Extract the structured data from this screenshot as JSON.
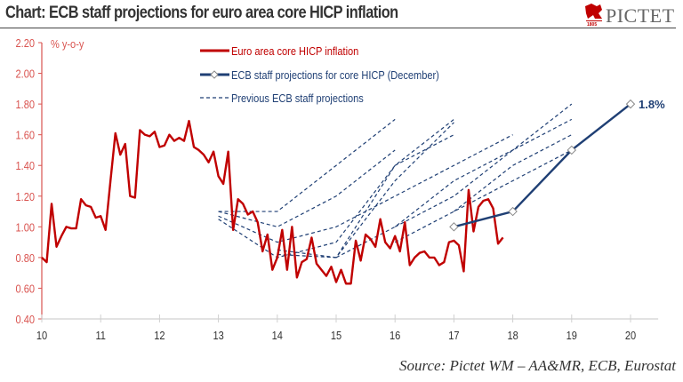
{
  "title": "Chart: ECB staff projections for euro area core HICP inflation",
  "logo": {
    "name": "PICTET",
    "year": "1805"
  },
  "source": "Source: Pictet WM – AA&MR, ECB, Eurostat",
  "colors": {
    "actual": "#c00000",
    "projection": "#1f3f74",
    "axis_y": "#d9534f"
  },
  "chart_data": {
    "type": "line",
    "title": "",
    "ylabel": "% y-o-y",
    "xlabel": "",
    "xlim": [
      10,
      20.47
    ],
    "ylim": [
      0.4,
      2.2
    ],
    "yticks": [
      "0.40",
      "0.60",
      "0.80",
      "1.00",
      "1.20",
      "1.40",
      "1.60",
      "1.80",
      "2.00",
      "2.20"
    ],
    "xticks": [
      "10",
      "11",
      "12",
      "13",
      "14",
      "15",
      "16",
      "17",
      "18",
      "19",
      "20"
    ],
    "grid": false,
    "legend_placement": "top-center",
    "annotation": "1.8%",
    "series": [
      {
        "name": "Euro area core HICP inflation",
        "start": 10,
        "frequency": "monthly",
        "values": [
          0.8,
          0.77,
          1.15,
          0.87,
          0.94,
          1.0,
          0.99,
          0.99,
          1.18,
          1.14,
          1.13,
          1.06,
          1.07,
          0.98,
          1.3,
          1.61,
          1.47,
          1.54,
          1.2,
          1.19,
          1.63,
          1.6,
          1.59,
          1.62,
          1.52,
          1.53,
          1.6,
          1.56,
          1.58,
          1.56,
          1.69,
          1.52,
          1.5,
          1.47,
          1.42,
          1.49,
          1.33,
          1.28,
          1.49,
          0.98,
          1.18,
          1.15,
          1.08,
          1.1,
          1.03,
          0.84,
          0.95,
          0.72,
          0.8,
          0.98,
          0.72,
          1.0,
          0.67,
          0.77,
          0.79,
          0.93,
          0.76,
          0.72,
          0.68,
          0.74,
          0.64,
          0.72,
          0.63,
          0.63,
          0.91,
          0.78,
          0.95,
          0.92,
          0.87,
          1.05,
          0.9,
          0.86,
          0.94,
          0.84,
          1.03,
          0.75,
          0.8,
          0.83,
          0.84,
          0.8,
          0.8,
          0.75,
          0.77,
          0.9,
          0.91,
          0.88,
          0.71,
          1.24,
          0.97,
          1.13,
          1.17,
          1.18,
          1.12,
          0.89,
          0.93
        ]
      },
      {
        "name": "ECB staff projections for core HICP (December)",
        "points": [
          [
            17,
            1.0
          ],
          [
            18,
            1.1
          ],
          [
            19,
            1.5
          ],
          [
            20,
            1.8
          ]
        ]
      },
      {
        "name": "Previous ECB staff projections",
        "lines": [
          [
            [
              13,
              1.1
            ],
            [
              14,
              1.1
            ],
            [
              15,
              1.4
            ],
            [
              16,
              1.7
            ]
          ],
          [
            [
              13,
              1.1
            ],
            [
              14,
              1.0
            ],
            [
              15,
              1.2
            ],
            [
              16,
              1.5
            ]
          ],
          [
            [
              13,
              1.07
            ],
            [
              14,
              0.9
            ],
            [
              15,
              1.0
            ],
            [
              16,
              1.2
            ],
            [
              17,
              1.4
            ],
            [
              18,
              1.6
            ]
          ],
          [
            [
              13,
              1.05
            ],
            [
              14,
              0.8
            ],
            [
              15,
              0.9
            ],
            [
              16,
              1.4
            ],
            [
              17,
              1.7
            ]
          ],
          [
            [
              14,
              0.82
            ],
            [
              15,
              0.8
            ],
            [
              16,
              1.4
            ],
            [
              17,
              1.6
            ]
          ],
          [
            [
              14,
              0.85
            ],
            [
              15,
              0.8
            ],
            [
              16,
              1.3
            ],
            [
              17,
              1.68
            ]
          ],
          [
            [
              15,
              0.8
            ],
            [
              16,
              1.0
            ],
            [
              17,
              1.3
            ],
            [
              18,
              1.5
            ],
            [
              19,
              1.8
            ]
          ],
          [
            [
              16,
              1.0
            ],
            [
              17,
              1.2
            ],
            [
              18,
              1.5
            ],
            [
              19,
              1.7
            ]
          ],
          [
            [
              16,
              0.9
            ],
            [
              17,
              1.1
            ],
            [
              18,
              1.3
            ],
            [
              19,
              1.5
            ]
          ],
          [
            [
              17,
              1.1
            ],
            [
              18,
              1.4
            ],
            [
              19,
              1.6
            ]
          ]
        ]
      }
    ]
  }
}
